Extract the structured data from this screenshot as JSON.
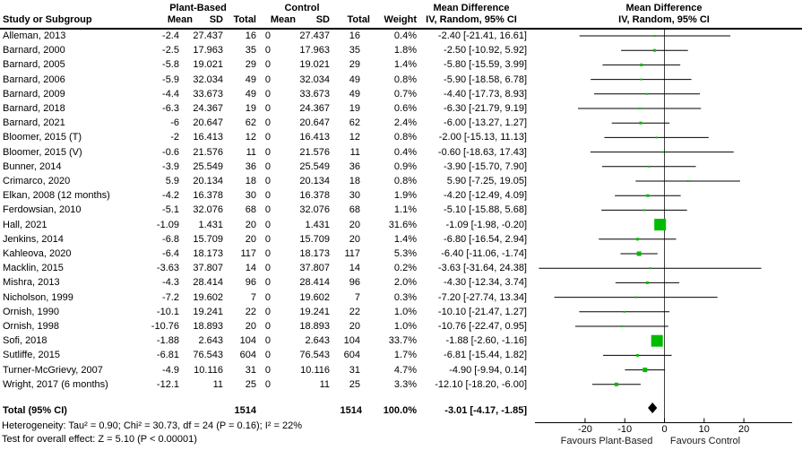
{
  "columns": {
    "study": "Study or Subgroup",
    "mean": "Mean",
    "sd": "SD",
    "total": "Total",
    "weight": "Weight"
  },
  "groups": {
    "group1_label": "Plant-Based",
    "group2_label": "Control"
  },
  "md_header": {
    "title": "Mean Difference",
    "subtitle": "IV, Random, 95% CI"
  },
  "colors": {
    "marker_green": "#00BC00",
    "diamond_black": "#000000",
    "line_black": "#000000",
    "zero_line_gray": "#404040"
  },
  "chart_data": {
    "type": "forest",
    "effect_measure": "Mean Difference, IV, Random, 95% CI",
    "studies": [
      {
        "name": "Alleman, 2013",
        "p_mean": "-2.4",
        "p_sd": "27.437",
        "p_total": "16",
        "c_mean": "0",
        "c_sd": "27.437",
        "c_total": "16",
        "weight": "0.4%",
        "md": -2.4,
        "ci": [
          -21.41,
          16.61
        ],
        "md_label": "-2.40 [-21.41, 16.61]"
      },
      {
        "name": "Barnard, 2000",
        "p_mean": "-2.5",
        "p_sd": "17.963",
        "p_total": "35",
        "c_mean": "0",
        "c_sd": "17.963",
        "c_total": "35",
        "weight": "1.8%",
        "md": -2.5,
        "ci": [
          -10.92,
          5.92
        ],
        "md_label": "-2.50 [-10.92, 5.92]"
      },
      {
        "name": "Barnard, 2005",
        "p_mean": "-5.8",
        "p_sd": "19.021",
        "p_total": "29",
        "c_mean": "0",
        "c_sd": "19.021",
        "c_total": "29",
        "weight": "1.4%",
        "md": -5.8,
        "ci": [
          -15.59,
          3.99
        ],
        "md_label": "-5.80 [-15.59, 3.99]"
      },
      {
        "name": "Barnard, 2006",
        "p_mean": "-5.9",
        "p_sd": "32.034",
        "p_total": "49",
        "c_mean": "0",
        "c_sd": "32.034",
        "c_total": "49",
        "weight": "0.8%",
        "md": -5.9,
        "ci": [
          -18.58,
          6.78
        ],
        "md_label": "-5.90 [-18.58, 6.78]"
      },
      {
        "name": "Barnard, 2009",
        "p_mean": "-4.4",
        "p_sd": "33.673",
        "p_total": "49",
        "c_mean": "0",
        "c_sd": "33.673",
        "c_total": "49",
        "weight": "0.7%",
        "md": -4.4,
        "ci": [
          -17.73,
          8.93
        ],
        "md_label": "-4.40 [-17.73, 8.93]"
      },
      {
        "name": "Barnard, 2018",
        "p_mean": "-6.3",
        "p_sd": "24.367",
        "p_total": "19",
        "c_mean": "0",
        "c_sd": "24.367",
        "c_total": "19",
        "weight": "0.6%",
        "md": -6.3,
        "ci": [
          -21.79,
          9.19
        ],
        "md_label": "-6.30 [-21.79, 9.19]"
      },
      {
        "name": "Barnard, 2021",
        "p_mean": "-6",
        "p_sd": "20.647",
        "p_total": "62",
        "c_mean": "0",
        "c_sd": "20.647",
        "c_total": "62",
        "weight": "2.4%",
        "md": -6.0,
        "ci": [
          -13.27,
          1.27
        ],
        "md_label": "-6.00 [-13.27, 1.27]"
      },
      {
        "name": "Bloomer, 2015 (T)",
        "p_mean": "-2",
        "p_sd": "16.413",
        "p_total": "12",
        "c_mean": "0",
        "c_sd": "16.413",
        "c_total": "12",
        "weight": "0.8%",
        "md": -2.0,
        "ci": [
          -15.13,
          11.13
        ],
        "md_label": "-2.00 [-15.13, 11.13]"
      },
      {
        "name": "Bloomer, 2015 (V)",
        "p_mean": "-0.6",
        "p_sd": "21.576",
        "p_total": "11",
        "c_mean": "0",
        "c_sd": "21.576",
        "c_total": "11",
        "weight": "0.4%",
        "md": -0.6,
        "ci": [
          -18.63,
          17.43
        ],
        "md_label": "-0.60 [-18.63, 17.43]"
      },
      {
        "name": "Bunner, 2014",
        "p_mean": "-3.9",
        "p_sd": "25.549",
        "p_total": "36",
        "c_mean": "0",
        "c_sd": "25.549",
        "c_total": "36",
        "weight": "0.9%",
        "md": -3.9,
        "ci": [
          -15.7,
          7.9
        ],
        "md_label": "-3.90 [-15.70, 7.90]"
      },
      {
        "name": "Crimarco, 2020",
        "p_mean": "5.9",
        "p_sd": "20.134",
        "p_total": "18",
        "c_mean": "0",
        "c_sd": "20.134",
        "c_total": "18",
        "weight": "0.8%",
        "md": 5.9,
        "ci": [
          -7.25,
          19.05
        ],
        "md_label": "5.90 [-7.25, 19.05]"
      },
      {
        "name": "Elkan, 2008 (12 months)",
        "p_mean": "-4.2",
        "p_sd": "16.378",
        "p_total": "30",
        "c_mean": "0",
        "c_sd": "16.378",
        "c_total": "30",
        "weight": "1.9%",
        "md": -4.2,
        "ci": [
          -12.49,
          4.09
        ],
        "md_label": "-4.20 [-12.49, 4.09]"
      },
      {
        "name": "Ferdowsian, 2010",
        "p_mean": "-5.1",
        "p_sd": "32.076",
        "p_total": "68",
        "c_mean": "0",
        "c_sd": "32.076",
        "c_total": "68",
        "weight": "1.1%",
        "md": -5.1,
        "ci": [
          -15.88,
          5.68
        ],
        "md_label": "-5.10 [-15.88, 5.68]"
      },
      {
        "name": "Hall, 2021",
        "p_mean": "-1.09",
        "p_sd": "1.431",
        "p_total": "20",
        "c_mean": "0",
        "c_sd": "1.431",
        "c_total": "20",
        "weight": "31.6%",
        "md": -1.09,
        "ci": [
          -1.98,
          -0.2
        ],
        "md_label": "-1.09 [-1.98, -0.20]"
      },
      {
        "name": "Jenkins, 2014",
        "p_mean": "-6.8",
        "p_sd": "15.709",
        "p_total": "20",
        "c_mean": "0",
        "c_sd": "15.709",
        "c_total": "20",
        "weight": "1.4%",
        "md": -6.8,
        "ci": [
          -16.54,
          2.94
        ],
        "md_label": "-6.80 [-16.54, 2.94]"
      },
      {
        "name": "Kahleova, 2020",
        "p_mean": "-6.4",
        "p_sd": "18.173",
        "p_total": "117",
        "c_mean": "0",
        "c_sd": "18.173",
        "c_total": "117",
        "weight": "5.3%",
        "md": -6.4,
        "ci": [
          -11.06,
          -1.74
        ],
        "md_label": "-6.40 [-11.06, -1.74]"
      },
      {
        "name": "Macklin, 2015",
        "p_mean": "-3.63",
        "p_sd": "37.807",
        "p_total": "14",
        "c_mean": "0",
        "c_sd": "37.807",
        "c_total": "14",
        "weight": "0.2%",
        "md": -3.63,
        "ci": [
          -31.64,
          24.38
        ],
        "md_label": "-3.63 [-31.64, 24.38]"
      },
      {
        "name": "Mishra, 2013",
        "p_mean": "-4.3",
        "p_sd": "28.414",
        "p_total": "96",
        "c_mean": "0",
        "c_sd": "28.414",
        "c_total": "96",
        "weight": "2.0%",
        "md": -4.3,
        "ci": [
          -12.34,
          3.74
        ],
        "md_label": "-4.30 [-12.34, 3.74]"
      },
      {
        "name": "Nicholson, 1999",
        "p_mean": "-7.2",
        "p_sd": "19.602",
        "p_total": "7",
        "c_mean": "0",
        "c_sd": "19.602",
        "c_total": "7",
        "weight": "0.3%",
        "md": -7.2,
        "ci": [
          -27.74,
          13.34
        ],
        "md_label": "-7.20 [-27.74, 13.34]"
      },
      {
        "name": "Ornish, 1990",
        "p_mean": "-10.1",
        "p_sd": "19.241",
        "p_total": "22",
        "c_mean": "0",
        "c_sd": "19.241",
        "c_total": "22",
        "weight": "1.0%",
        "md": -10.1,
        "ci": [
          -21.47,
          1.27
        ],
        "md_label": "-10.10 [-21.47, 1.27]"
      },
      {
        "name": "Ornish, 1998",
        "p_mean": "-10.76",
        "p_sd": "18.893",
        "p_total": "20",
        "c_mean": "0",
        "c_sd": "18.893",
        "c_total": "20",
        "weight": "1.0%",
        "md": -10.76,
        "ci": [
          -22.47,
          0.95
        ],
        "md_label": "-10.76 [-22.47, 0.95]"
      },
      {
        "name": "Sofi, 2018",
        "p_mean": "-1.88",
        "p_sd": "2.643",
        "p_total": "104",
        "c_mean": "0",
        "c_sd": "2.643",
        "c_total": "104",
        "weight": "33.7%",
        "md": -1.88,
        "ci": [
          -2.6,
          -1.16
        ],
        "md_label": "-1.88 [-2.60, -1.16]"
      },
      {
        "name": "Sutliffe, 2015",
        "p_mean": "-6.81",
        "p_sd": "76.543",
        "p_total": "604",
        "c_mean": "0",
        "c_sd": "76.543",
        "c_total": "604",
        "weight": "1.7%",
        "md": -6.81,
        "ci": [
          -15.44,
          1.82
        ],
        "md_label": "-6.81 [-15.44, 1.82]"
      },
      {
        "name": "Turner-McGrievy, 2007",
        "p_mean": "-4.9",
        "p_sd": "10.116",
        "p_total": "31",
        "c_mean": "0",
        "c_sd": "10.116",
        "c_total": "31",
        "weight": "4.7%",
        "md": -4.9,
        "ci": [
          -9.94,
          0.14
        ],
        "md_label": "-4.90 [-9.94, 0.14]"
      },
      {
        "name": "Wright, 2017 (6 months)",
        "p_mean": "-12.1",
        "p_sd": "11",
        "p_total": "25",
        "c_mean": "0",
        "c_sd": "11",
        "c_total": "25",
        "weight": "3.3%",
        "md": -12.1,
        "ci": [
          -18.2,
          -6.0
        ],
        "md_label": "-12.10 [-18.20, -6.00]"
      }
    ],
    "total": {
      "label": "Total (95% CI)",
      "p_total": "1514",
      "c_total": "1514",
      "weight": "100.0%",
      "md": -3.01,
      "ci": [
        -4.17,
        -1.85
      ],
      "md_label": "-3.01 [-4.17, -1.85]"
    },
    "axis": {
      "ticks": [
        -20,
        -10,
        0,
        10,
        20
      ],
      "tick_labels": [
        "-20",
        "-10",
        "0",
        "10",
        "20"
      ],
      "range": [
        -32.5,
        31.5
      ],
      "favours_left": "Favours Plant-Based",
      "favours_right": "Favours Control"
    }
  },
  "footnotes": {
    "heterogeneity": "Heterogeneity: Tau² = 0.90; Chi² = 30.73, df = 24 (P = 0.16); I² = 22%",
    "overall_effect": "Test for overall effect: Z = 5.10 (P < 0.00001)"
  }
}
